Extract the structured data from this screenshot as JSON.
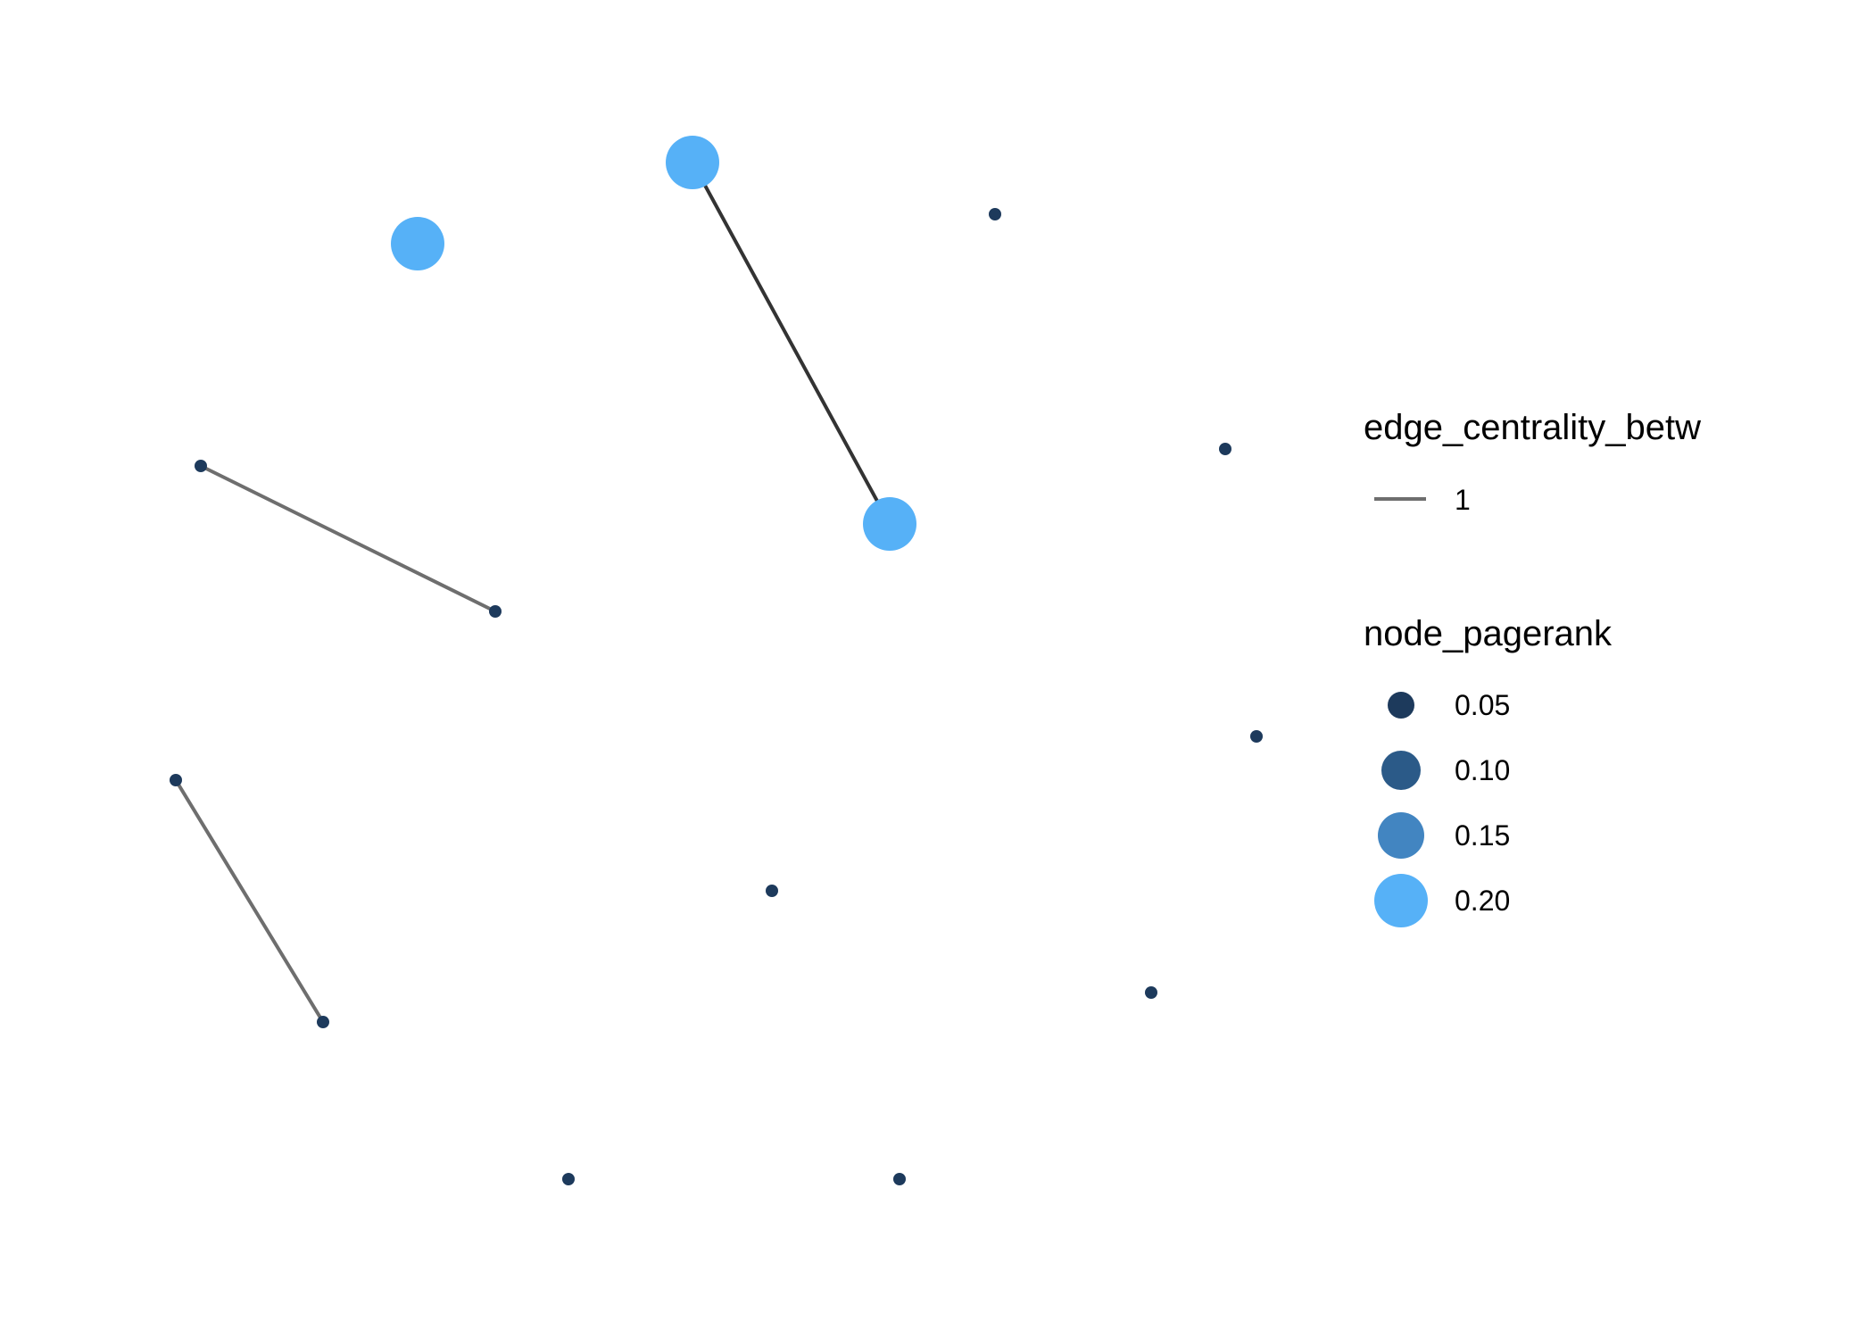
{
  "graph": {
    "nodes": [
      {
        "id": "n1",
        "pagerank": 0.2
      },
      {
        "id": "n2",
        "pagerank": 0.2
      },
      {
        "id": "n3",
        "pagerank": 0.2
      },
      {
        "id": "n4",
        "pagerank": 0.05
      },
      {
        "id": "n5",
        "pagerank": 0.05
      },
      {
        "id": "n6",
        "pagerank": 0.05
      },
      {
        "id": "n7",
        "pagerank": 0.05
      },
      {
        "id": "n8",
        "pagerank": 0.05
      },
      {
        "id": "n9",
        "pagerank": 0.05
      },
      {
        "id": "n10",
        "pagerank": 0.05
      },
      {
        "id": "n11",
        "pagerank": 0.05
      },
      {
        "id": "n12",
        "pagerank": 0.05
      },
      {
        "id": "n13",
        "pagerank": 0.05
      },
      {
        "id": "n14",
        "pagerank": 0.05
      }
    ],
    "edges": [
      {
        "from": "n1",
        "to": "n2",
        "edge_centrality_betw": 1
      },
      {
        "from": "n5",
        "to": "n6",
        "edge_centrality_betw": 1
      },
      {
        "from": "n7",
        "to": "n8",
        "edge_centrality_betw": 1
      }
    ]
  },
  "legend": {
    "edge": {
      "title": "edge_centrality_betw",
      "items": [
        {
          "label": "1",
          "color": "#6e6e6e"
        }
      ]
    },
    "node": {
      "title": "node_pagerank",
      "items": [
        {
          "label": "0.05",
          "color": "#1d3a5c"
        },
        {
          "label": "0.10",
          "color": "#2b5a88"
        },
        {
          "label": "0.15",
          "color": "#4285c1"
        },
        {
          "label": "0.20",
          "color": "#56b1f7"
        }
      ]
    }
  },
  "colors": {
    "node_low": "#132b43",
    "node_high": "#56b1f7",
    "edge_default": "#6e6e6e",
    "edge_dark": "#333333"
  }
}
